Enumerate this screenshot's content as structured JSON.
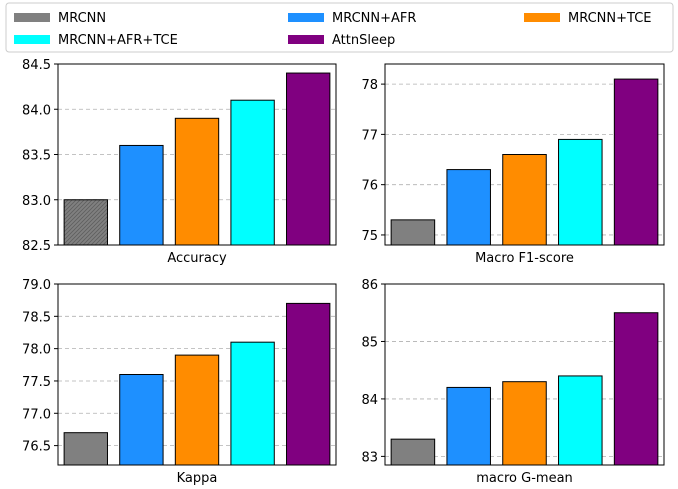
{
  "legend": {
    "location": "top",
    "entries": [
      {
        "name": "MRCNN",
        "color": "#808080"
      },
      {
        "name": "MRCNN+AFR",
        "color": "#1e90ff"
      },
      {
        "name": "MRCNN+TCE",
        "color": "#ff8c00"
      },
      {
        "name": "MRCNN+AFR+TCE",
        "color": "#00ffff"
      },
      {
        "name": "AttnSleep",
        "color": "#800080"
      }
    ]
  },
  "chart_data": [
    {
      "type": "bar",
      "xlabel": "Accuracy",
      "categories": [
        "MRCNN",
        "MRCNN+AFR",
        "MRCNN+TCE",
        "MRCNN+AFR+TCE",
        "AttnSleep"
      ],
      "values": [
        83.0,
        83.6,
        83.9,
        84.1,
        84.4
      ],
      "ylim": [
        82.5,
        84.5
      ],
      "yticks": [
        "82.5",
        "83.0",
        "83.5",
        "84.0",
        "84.5"
      ],
      "grid": "y-dashed",
      "hatched_first_bar": true
    },
    {
      "type": "bar",
      "xlabel": "Macro F1-score",
      "categories": [
        "MRCNN",
        "MRCNN+AFR",
        "MRCNN+TCE",
        "MRCNN+AFR+TCE",
        "AttnSleep"
      ],
      "values": [
        75.3,
        76.3,
        76.6,
        76.9,
        78.1
      ],
      "ylim": [
        74.8,
        78.4
      ],
      "yticks": [
        "75",
        "76",
        "77",
        "78"
      ],
      "grid": "y-dashed",
      "hatched_first_bar": false
    },
    {
      "type": "bar",
      "xlabel": "Kappa",
      "categories": [
        "MRCNN",
        "MRCNN+AFR",
        "MRCNN+TCE",
        "MRCNN+AFR+TCE",
        "AttnSleep"
      ],
      "values": [
        76.7,
        77.6,
        77.9,
        78.1,
        78.7
      ],
      "ylim": [
        76.2,
        79.0
      ],
      "yticks": [
        "76.5",
        "77.0",
        "77.5",
        "78.0",
        "78.5",
        "79.0"
      ],
      "grid": "y-dashed",
      "hatched_first_bar": false
    },
    {
      "type": "bar",
      "xlabel": "macro G-mean",
      "categories": [
        "MRCNN",
        "MRCNN+AFR",
        "MRCNN+TCE",
        "MRCNN+AFR+TCE",
        "AttnSleep"
      ],
      "values": [
        83.3,
        84.2,
        84.3,
        84.4,
        85.5
      ],
      "ylim": [
        82.85,
        86.0
      ],
      "yticks": [
        "83",
        "84",
        "85",
        "86"
      ],
      "grid": "y-dashed",
      "hatched_first_bar": false
    }
  ]
}
